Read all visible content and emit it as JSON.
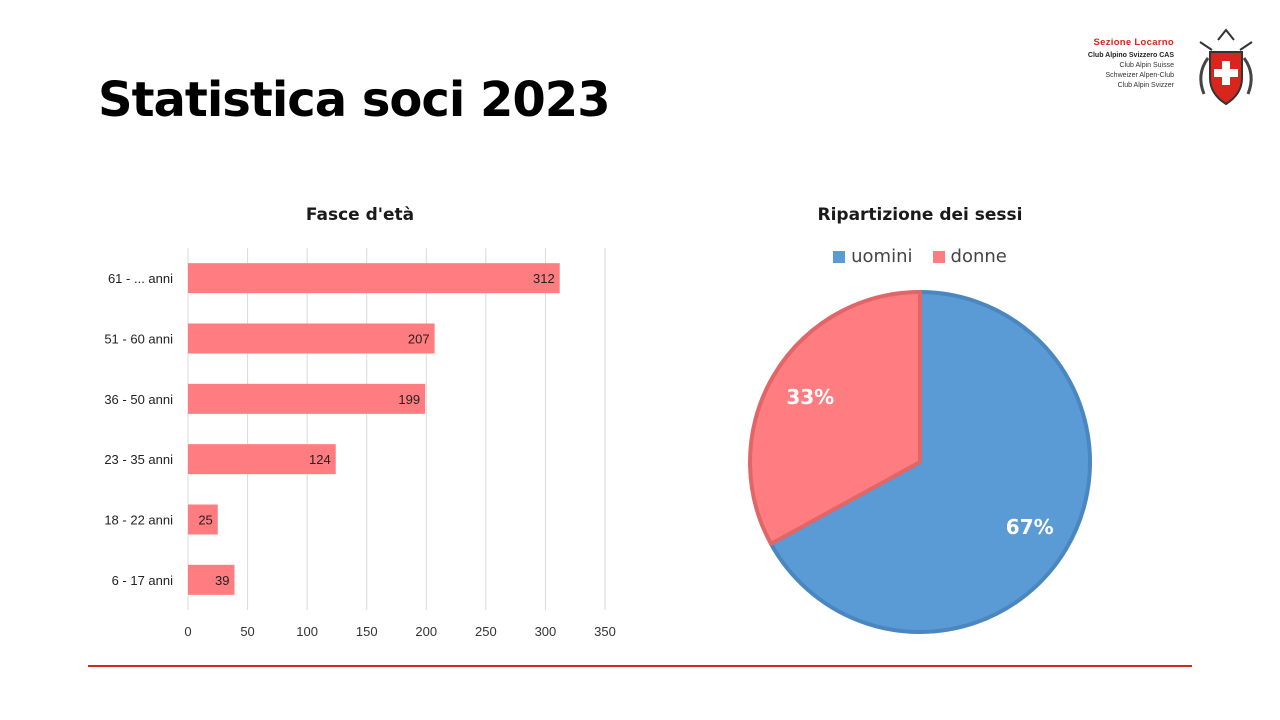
{
  "page": {
    "title": "Statistica soci 2023"
  },
  "logo": {
    "line1": "Sezione Locarno",
    "line2": "Club Alpino Svizzero CAS",
    "line3": "Club Alpin Suisse",
    "line4": "Schweizer Alpen-Club",
    "line5": "Club Alpin Svizzer",
    "emblem_icon": "swiss-cross-shield-icon",
    "accent_color": "#d9261c"
  },
  "footer": {
    "rule_color": "#d9261c"
  },
  "chart_data": [
    {
      "type": "bar",
      "orientation": "horizontal",
      "title": "Fasce d'età",
      "categories": [
        "61 - ... anni",
        "51 - 60 anni",
        "36 - 50 anni",
        "23 - 35 anni",
        "18 - 22 anni",
        "6 - 17 anni"
      ],
      "values": [
        312,
        207,
        199,
        124,
        25,
        39
      ],
      "data_labels": [
        "312",
        "207",
        "199",
        "124",
        "25",
        "39"
      ],
      "xlim": [
        0,
        350
      ],
      "xticks": [
        "0",
        "50",
        "100",
        "150",
        "200",
        "250",
        "300",
        "350"
      ],
      "xtick_values": [
        0,
        50,
        100,
        150,
        200,
        250,
        300,
        350
      ],
      "grid": true,
      "legend": false,
      "color": "#ff7c80"
    },
    {
      "type": "pie",
      "title": "Ripartizione dei sessi",
      "categories": [
        "uomini",
        "donne"
      ],
      "values": [
        67,
        33
      ],
      "data_labels": [
        "67%",
        "33%"
      ],
      "colors": [
        "#5b9bd5",
        "#ff7c80"
      ],
      "legend": "top"
    }
  ]
}
